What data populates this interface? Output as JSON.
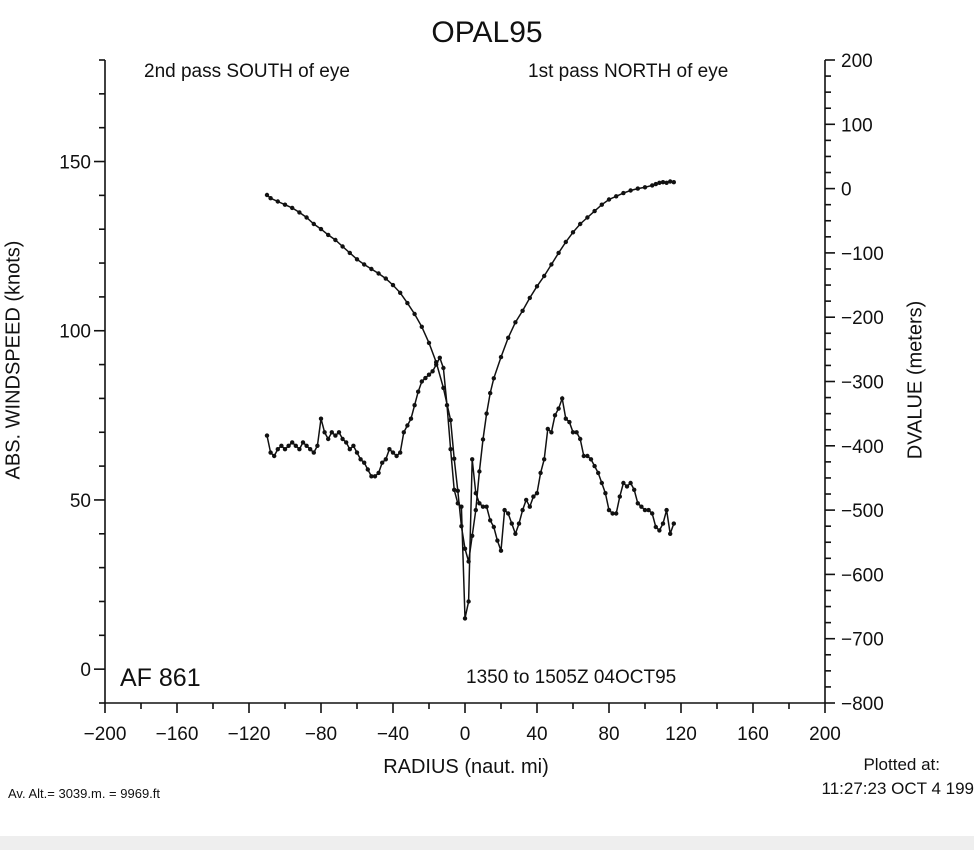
{
  "chart_data": {
    "type": "line",
    "title": "OPAL95",
    "xlabel": "RADIUS (naut. mi)",
    "ylabel_left": "ABS. WINDSPEED (knots)",
    "ylabel_right": "DVALUE (meters)",
    "xlim": [
      -200,
      200
    ],
    "ylim_left": [
      -10,
      180
    ],
    "ylim_right": [
      -800,
      200
    ],
    "xticks": [
      -200,
      -160,
      -120,
      -80,
      -40,
      0,
      40,
      80,
      120,
      160,
      200
    ],
    "yticks_left": [
      0,
      50,
      100,
      150
    ],
    "yticks_right": [
      200,
      100,
      0,
      -100,
      -200,
      -300,
      -400,
      -500,
      -600,
      -700,
      -800
    ],
    "grid": false,
    "annotations": {
      "left_pass": "2nd pass SOUTH of eye",
      "right_pass": "1st pass NORTH of eye",
      "aircraft": "AF 861",
      "time_range": "1350 to 1505Z 04OCT95",
      "plotted_label": "Plotted at:",
      "plotted_time": "11:27:23 OCT  4 199",
      "altitude": "Av. Alt.= 3039.m. =  9969.ft"
    },
    "series": [
      {
        "axis": "right",
        "x": [
          -110,
          -108,
          -104,
          -100,
          -96,
          -92,
          -88,
          -84,
          -80,
          -76,
          -72,
          -68,
          -64,
          -60,
          -56,
          -52,
          -48,
          -44,
          -40,
          -36,
          -32,
          -28,
          -24,
          -20,
          -16,
          -12,
          -8,
          -6,
          -4,
          -2,
          0,
          2,
          4,
          6,
          8,
          10,
          12,
          14,
          16,
          20,
          24,
          28,
          32,
          36,
          40,
          44,
          48,
          52,
          56,
          60,
          64,
          68,
          72,
          76,
          80,
          84,
          88,
          92,
          96,
          100,
          104,
          106,
          108,
          110,
          112,
          114,
          116
        ],
        "values": [
          -10,
          -15,
          -20,
          -25,
          -30,
          -37,
          -45,
          -55,
          -63,
          -72,
          -80,
          -90,
          -100,
          -110,
          -118,
          -125,
          -132,
          -140,
          -150,
          -162,
          -178,
          -195,
          -215,
          -240,
          -270,
          -310,
          -360,
          -420,
          -470,
          -525,
          -560,
          -580,
          -540,
          -500,
          -440,
          -390,
          -350,
          -318,
          -295,
          -262,
          -232,
          -208,
          -190,
          -170,
          -152,
          -136,
          -118,
          -100,
          -83,
          -68,
          -55,
          -45,
          -35,
          -25,
          -17,
          -12,
          -7,
          -3,
          0,
          2,
          5,
          7,
          9,
          10,
          9,
          11,
          10
        ]
      },
      {
        "axis": "left",
        "x": [
          -110,
          -108,
          -106,
          -104,
          -102,
          -100,
          -98,
          -96,
          -94,
          -92,
          -90,
          -88,
          -86,
          -84,
          -82,
          -80,
          -78,
          -76,
          -74,
          -72,
          -70,
          -68,
          -66,
          -64,
          -62,
          -60,
          -58,
          -56,
          -54,
          -52,
          -50,
          -48,
          -46,
          -44,
          -42,
          -40,
          -38,
          -36,
          -34,
          -32,
          -30,
          -28,
          -26,
          -24,
          -22,
          -20,
          -18,
          -16,
          -14,
          -12,
          -10,
          -8,
          -6,
          -4,
          -2,
          0,
          2,
          4,
          6,
          8,
          10,
          12,
          14,
          16,
          18,
          20,
          22,
          24,
          26,
          28,
          30,
          32,
          34,
          36,
          38,
          40,
          42,
          44,
          46,
          48,
          50,
          52,
          54,
          56,
          58,
          60,
          62,
          64,
          66,
          68,
          70,
          72,
          74,
          76,
          78,
          80,
          82,
          84,
          86,
          88,
          90,
          92,
          94,
          96,
          98,
          100,
          102,
          104,
          106,
          108,
          110,
          112,
          114,
          116
        ],
        "values": [
          69,
          64,
          63,
          65,
          66,
          65,
          66,
          67,
          66,
          65,
          67,
          66,
          65,
          64,
          66,
          74,
          70,
          68,
          70,
          69,
          70,
          68,
          67,
          65,
          66,
          64,
          62,
          61,
          59,
          57,
          57,
          58,
          61,
          62,
          65,
          64,
          63,
          64,
          70,
          72,
          74,
          78,
          82,
          85,
          86,
          87,
          88,
          90,
          92,
          89,
          78,
          65,
          53,
          49,
          48,
          15,
          20,
          62,
          52,
          49,
          48,
          48,
          44,
          42,
          38,
          35,
          47,
          46,
          43,
          40,
          43,
          47,
          50,
          48,
          51,
          52,
          58,
          62,
          71,
          70,
          75,
          77,
          80,
          74,
          73,
          70,
          70,
          68,
          63,
          63,
          62,
          60,
          58,
          55,
          52,
          47,
          46,
          46,
          51,
          55,
          54,
          55,
          53,
          49,
          48,
          47,
          47,
          46,
          42,
          41,
          43,
          47,
          40,
          43
        ]
      }
    ]
  }
}
